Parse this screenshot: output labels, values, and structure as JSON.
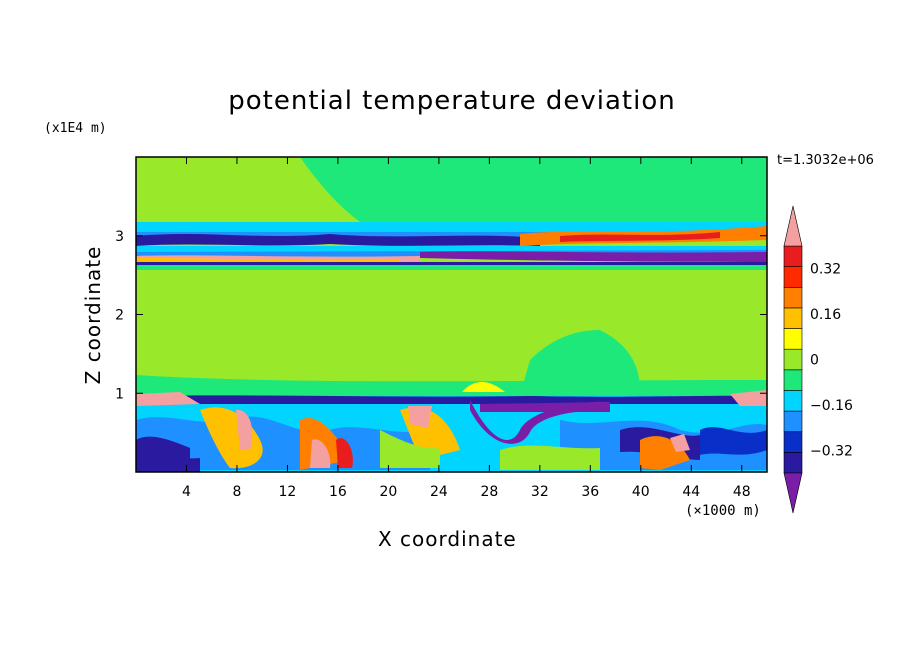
{
  "chart_data": {
    "type": "heatmap",
    "title": "potential temperature deviation",
    "xlabel": "X coordinate",
    "ylabel": "Z coordinate",
    "x_unit": "(×1000 m)",
    "y_unit": "(x1E4 m)",
    "time_label": "t=1.3032e+06",
    "xlim": [
      0,
      50
    ],
    "ylim": [
      0,
      4
    ],
    "x_ticks": [
      "4",
      "8",
      "12",
      "16",
      "20",
      "24",
      "28",
      "32",
      "36",
      "40",
      "44",
      "48"
    ],
    "y_ticks": [
      "1",
      "2",
      "3"
    ],
    "colorbar": {
      "levels": [
        -0.48,
        -0.4,
        -0.32,
        -0.24,
        -0.16,
        -0.08,
        0,
        0.08,
        0.16,
        0.24,
        0.32,
        0.4,
        0.48
      ],
      "labels": [
        "0.32",
        "0.16",
        "0",
        "−0.16",
        "−0.32"
      ],
      "label_values": [
        0.32,
        0.16,
        0,
        -0.16,
        -0.32
      ],
      "colors": [
        "#7a1ea8",
        "#2a1aa0",
        "#0a2fc8",
        "#1e90ff",
        "#00d4ff",
        "#1ee87a",
        "#9ae82a",
        "#ffff00",
        "#ffc000",
        "#ff8000",
        "#ff2a00",
        "#e81e1e",
        "#f4a0a0"
      ]
    }
  }
}
